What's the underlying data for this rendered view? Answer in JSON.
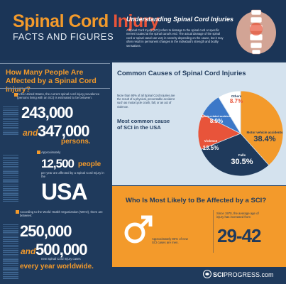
{
  "header": {
    "title_part1": "Spinal Cord ",
    "title_part2": "Injury",
    "subtitle": "FACTS AND FIGURES",
    "understand_title": "Understanding Spinal Cord Injuries",
    "understand_body": "A Spinal Cord Injury (SCI) refers to damage to the spinal cord or specific nerves located at the spinal canal's end. The actual damage of the spinal cord or spinal canal can vary in severity depending on the cause, but it may often result in permanent changes in the individual's strength and bodily sensations."
  },
  "affected": {
    "title": "How Many People Are Affected by a Spinal Cord Injury?",
    "us_text": "In the United States, the current spinal cord injury prevalence (persons living with an SCI) is estimated to be between:",
    "num1": "243,000",
    "and_label": "and",
    "num2": "347,000",
    "persons_label": "persons.",
    "approx_text": "Approximately",
    "num_new": "12,500",
    "people_label": "people",
    "peryear_text": "per year are affected by a Spinal Cord Injury in the",
    "usa_label": "USA",
    "who_text": "According to the World Health Organization (WHO), there are between:",
    "num3": "250,000",
    "num4": "500,000",
    "newcases_text": "new Spinal Cord Injury cases",
    "everyyear_label": "every year worldwide."
  },
  "causes": {
    "title": "Common Causes of Spinal Cord Injuries",
    "intro": "More than 90% of all Spinal Cord Injuries are the result of a physical, preventable accident such as motorcycle crash, fall, or an act of violence.",
    "most_common": "Most common cause of SCI in the USA"
  },
  "chart_data": {
    "type": "pie",
    "title": "",
    "slices": [
      {
        "label": "Motor vehicle accidents",
        "value": 38.4,
        "display": "38.4%",
        "color": "#f39a2b"
      },
      {
        "label": "Falls",
        "value": 30.5,
        "display": "30.5%",
        "color": "#1f3a5c"
      },
      {
        "label": "Violence",
        "value": 13.5,
        "display": "13.5%",
        "color": "#e8543a"
      },
      {
        "label": "Sports-related accidents",
        "value": 8.9,
        "display": "8.9%",
        "color": "#3c78c8"
      },
      {
        "label": "Others",
        "value": 8.7,
        "display": "8.7%",
        "color": "#ffffff"
      }
    ]
  },
  "who_affected": {
    "title": "Who Is Most Likely to Be Affected by a SCI?",
    "male_text": "Approximately 80% of new SCI cases are men.",
    "since_text": "Since 1970, the average age of injury has increased from",
    "age_range": "29-42"
  },
  "footer": {
    "logo_bold": "SCI",
    "logo_rest": "PROGRESS.com"
  },
  "colors": {
    "navy": "#1f3a5c",
    "orange": "#f39a2b",
    "red": "#e8543a",
    "light_blue": "#d4e2ee"
  }
}
